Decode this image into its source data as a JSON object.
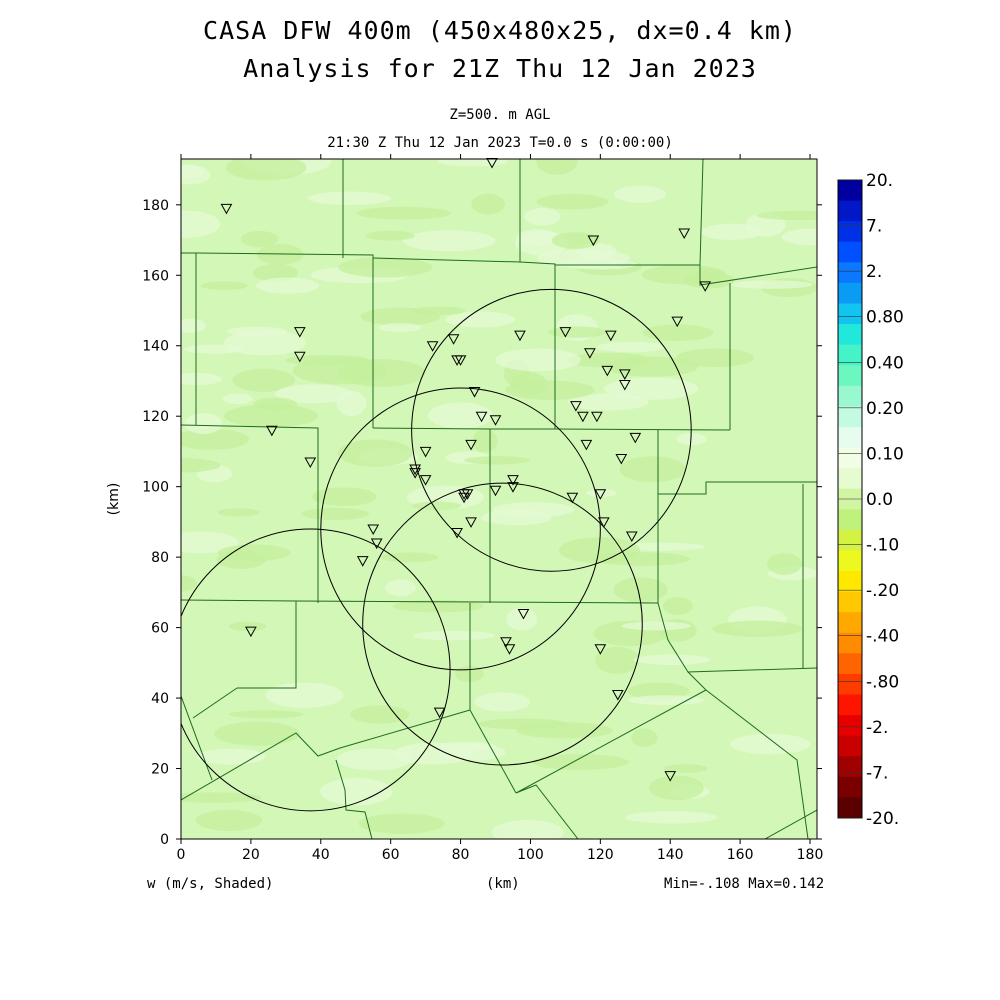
{
  "title_line1": "CASA DFW 400m (450x480x25, dx=0.4 km)",
  "title_line2": "Analysis for 21Z Thu 12 Jan 2023",
  "subtitle_line1": "Z=500. m AGL",
  "subtitle_line2": "21:30 Z Thu 12 Jan 2023   T=0.0 s (0:00:00)",
  "footer_left": "w (m/s, Shaded)",
  "footer_center": "(km)",
  "footer_right": "Min=-.108 Max=0.142",
  "colors": {
    "field_base": "#d3f7b6",
    "field_light": "#e4fad4",
    "field_dark": "#c4ef9c",
    "lines": "#1f6b1f"
  },
  "chart_data": {
    "type": "heatmap",
    "variable": "w (m/s, Shaded)",
    "level": "Z=500. m AGL",
    "xlabel": "(km)",
    "ylabel": "(km)",
    "xlim": [
      0,
      182
    ],
    "ylim": [
      0,
      193
    ],
    "x_ticks": [
      0,
      20,
      40,
      60,
      80,
      100,
      120,
      140,
      160,
      180
    ],
    "y_ticks": [
      0,
      20,
      40,
      60,
      80,
      100,
      120,
      140,
      160,
      180
    ],
    "x_tick_labels": [
      "0",
      "20",
      "40",
      "60",
      "80",
      "100",
      "120",
      "140",
      "160",
      "180"
    ],
    "y_tick_labels": [
      "0",
      "20",
      "40",
      "60",
      "80",
      "100",
      "120",
      "140",
      "160",
      "180"
    ],
    "min": -0.108,
    "max": 0.142,
    "colorbar": {
      "labels": [
        "20.",
        "7.",
        "2.",
        "0.80",
        "0.40",
        "0.20",
        "0.10",
        "0.0",
        "-.10",
        "-.20",
        "-.40",
        "-.80",
        "-2.",
        "-7.",
        "-20."
      ],
      "colors": [
        "#0000a0",
        "#0018c8",
        "#0030e6",
        "#0050ff",
        "#0a78ff",
        "#0a9cf4",
        "#11c5f0",
        "#22e8dc",
        "#44f3c8",
        "#6cf7c0",
        "#99f8cf",
        "#c2fae2",
        "#e5fcef",
        "#f2fde5",
        "#e6fbcf",
        "#d2f5a4",
        "#bff27c",
        "#d4f244",
        "#ecf81e",
        "#ffe800",
        "#ffc800",
        "#ffa800",
        "#ff8c00",
        "#ff6400",
        "#ff3c00",
        "#ff1400",
        "#e60000",
        "#c80000",
        "#a00000",
        "#7a0000",
        "#5a0000"
      ]
    },
    "radar_rings": [
      {
        "cx": 80,
        "cy": 88,
        "r": 40
      },
      {
        "cx": 106,
        "cy": 116,
        "r": 40
      },
      {
        "cx": 37,
        "cy": 48,
        "r": 40
      },
      {
        "cx": 92,
        "cy": 61,
        "r": 40
      }
    ],
    "stations": [
      [
        89,
        192
      ],
      [
        13,
        179
      ],
      [
        118,
        170
      ],
      [
        144,
        172
      ],
      [
        150,
        157
      ],
      [
        34,
        144
      ],
      [
        34,
        137
      ],
      [
        142,
        147
      ],
      [
        110,
        144
      ],
      [
        97,
        143
      ],
      [
        123,
        143
      ],
      [
        78,
        142
      ],
      [
        72,
        140
      ],
      [
        79,
        136
      ],
      [
        80,
        136
      ],
      [
        117,
        138
      ],
      [
        122,
        133
      ],
      [
        127,
        132
      ],
      [
        127,
        129
      ],
      [
        84,
        127
      ],
      [
        113,
        123
      ],
      [
        115,
        120
      ],
      [
        119,
        120
      ],
      [
        86,
        120
      ],
      [
        90,
        119
      ],
      [
        26,
        116
      ],
      [
        130,
        114
      ],
      [
        83,
        112
      ],
      [
        116,
        112
      ],
      [
        70,
        110
      ],
      [
        126,
        108
      ],
      [
        37,
        107
      ],
      [
        67,
        105
      ],
      [
        67,
        104
      ],
      [
        95,
        102
      ],
      [
        70,
        102
      ],
      [
        95,
        100
      ],
      [
        90,
        99
      ],
      [
        81,
        98
      ],
      [
        82,
        98
      ],
      [
        81,
        97
      ],
      [
        112,
        97
      ],
      [
        120,
        98
      ],
      [
        121,
        90
      ],
      [
        83,
        90
      ],
      [
        79,
        87
      ],
      [
        55,
        88
      ],
      [
        56,
        84
      ],
      [
        129,
        86
      ],
      [
        52,
        79
      ],
      [
        98,
        64
      ],
      [
        20,
        59
      ],
      [
        93,
        56
      ],
      [
        94,
        54
      ],
      [
        120,
        54
      ],
      [
        125,
        41
      ],
      [
        74,
        36
      ],
      [
        140,
        18
      ]
    ]
  }
}
